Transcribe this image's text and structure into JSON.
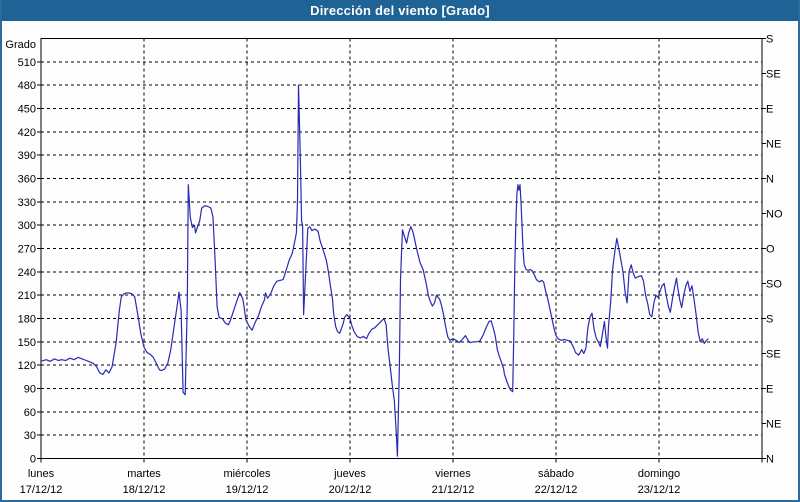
{
  "window": {
    "title": "Dirección del viento [Grado]"
  },
  "colors": {
    "titlebar_bg": "#1e6296",
    "titlebar_text": "#ffffff",
    "window_border": "#2b6a9b",
    "plot_frame": "#000000",
    "grid": "#000000",
    "line": "#2a2ab5",
    "background": "#fdfefd"
  },
  "chart_data": {
    "type": "line",
    "title": "Dirección del viento [Grado]",
    "grid": {
      "style": "dashed",
      "horizontal_step_deg": 30,
      "vertical": "day-boundaries"
    },
    "legend": "none",
    "y_axis": {
      "title": "Grado",
      "min": 0,
      "max": 540,
      "tick_step": 30,
      "tick_labels": [
        "0",
        "30",
        "60",
        "90",
        "120",
        "150",
        "180",
        "210",
        "240",
        "270",
        "300",
        "330",
        "360",
        "390",
        "420",
        "450",
        "480",
        "510"
      ]
    },
    "y2_axis": {
      "kind": "compass",
      "tick_step_deg": 45,
      "labels_bottom_to_top": [
        "N",
        "NE",
        "E",
        "SE",
        "S",
        "SO",
        "O",
        "NO",
        "N",
        "NE",
        "E",
        "SE",
        "S"
      ]
    },
    "x_axis": {
      "unit": "days",
      "days": [
        {
          "name": "lunes",
          "date": "17/12/12"
        },
        {
          "name": "martes",
          "date": "18/12/12"
        },
        {
          "name": "miércoles",
          "date": "19/12/12"
        },
        {
          "name": "jueves",
          "date": "20/12/12"
        },
        {
          "name": "viernes",
          "date": "21/12/12"
        },
        {
          "name": "sábado",
          "date": "22/12/12"
        },
        {
          "name": "domingo",
          "date": "23/12/12"
        }
      ]
    },
    "series": [
      {
        "name": "Dirección del viento [Grado]",
        "x_unit": "day_fraction_from_monday_start",
        "y_unit": "degrees",
        "points": [
          [
            0.0,
            125
          ],
          [
            0.05,
            127
          ],
          [
            0.09,
            125
          ],
          [
            0.13,
            128
          ],
          [
            0.17,
            126
          ],
          [
            0.2,
            127
          ],
          [
            0.24,
            126
          ],
          [
            0.28,
            129
          ],
          [
            0.32,
            127
          ],
          [
            0.36,
            130
          ],
          [
            0.4,
            128
          ],
          [
            0.44,
            126
          ],
          [
            0.48,
            124
          ],
          [
            0.51,
            122
          ],
          [
            0.54,
            118
          ],
          [
            0.57,
            110
          ],
          [
            0.6,
            108
          ],
          [
            0.63,
            114
          ],
          [
            0.66,
            110
          ],
          [
            0.69,
            118
          ],
          [
            0.73,
            150
          ],
          [
            0.76,
            190
          ],
          [
            0.78,
            208
          ],
          [
            0.81,
            212
          ],
          [
            0.84,
            213
          ],
          [
            0.88,
            212
          ],
          [
            0.91,
            208
          ],
          [
            0.94,
            185
          ],
          [
            0.97,
            160
          ],
          [
            1.0,
            143
          ],
          [
            1.03,
            136
          ],
          [
            1.06,
            134
          ],
          [
            1.09,
            130
          ],
          [
            1.12,
            122
          ],
          [
            1.15,
            114
          ],
          [
            1.17,
            113
          ],
          [
            1.2,
            115
          ],
          [
            1.23,
            122
          ],
          [
            1.26,
            140
          ],
          [
            1.29,
            168
          ],
          [
            1.32,
            195
          ],
          [
            1.34,
            214
          ],
          [
            1.36,
            190
          ],
          [
            1.38,
            85
          ],
          [
            1.4,
            82
          ],
          [
            1.42,
            200
          ],
          [
            1.43,
            352
          ],
          [
            1.45,
            310
          ],
          [
            1.47,
            297
          ],
          [
            1.49,
            300
          ],
          [
            1.5,
            290
          ],
          [
            1.52,
            298
          ],
          [
            1.54,
            305
          ],
          [
            1.56,
            322
          ],
          [
            1.59,
            325
          ],
          [
            1.62,
            324
          ],
          [
            1.65,
            322
          ],
          [
            1.67,
            310
          ],
          [
            1.69,
            255
          ],
          [
            1.71,
            195
          ],
          [
            1.73,
            181
          ],
          [
            1.76,
            180
          ],
          [
            1.79,
            174
          ],
          [
            1.82,
            172
          ],
          [
            1.84,
            178
          ],
          [
            1.87,
            190
          ],
          [
            1.9,
            202
          ],
          [
            1.93,
            213
          ],
          [
            1.96,
            205
          ],
          [
            1.99,
            178
          ],
          [
            2.02,
            170
          ],
          [
            2.05,
            165
          ],
          [
            2.08,
            175
          ],
          [
            2.11,
            183
          ],
          [
            2.14,
            195
          ],
          [
            2.17,
            204
          ],
          [
            2.18,
            213
          ],
          [
            2.2,
            206
          ],
          [
            2.23,
            212
          ],
          [
            2.26,
            222
          ],
          [
            2.29,
            228
          ],
          [
            2.32,
            229
          ],
          [
            2.35,
            230
          ],
          [
            2.38,
            242
          ],
          [
            2.41,
            255
          ],
          [
            2.44,
            264
          ],
          [
            2.46,
            277
          ],
          [
            2.48,
            290
          ],
          [
            2.49,
            330
          ],
          [
            2.5,
            480
          ],
          [
            2.51,
            430
          ],
          [
            2.52,
            370
          ],
          [
            2.53,
            305
          ],
          [
            2.54,
            300
          ],
          [
            2.55,
            185
          ],
          [
            2.57,
            240
          ],
          [
            2.59,
            296
          ],
          [
            2.61,
            298
          ],
          [
            2.63,
            293
          ],
          [
            2.66,
            295
          ],
          [
            2.69,
            292
          ],
          [
            2.71,
            280
          ],
          [
            2.74,
            268
          ],
          [
            2.77,
            255
          ],
          [
            2.79,
            240
          ],
          [
            2.81,
            222
          ],
          [
            2.83,
            205
          ],
          [
            2.84,
            188
          ],
          [
            2.86,
            170
          ],
          [
            2.88,
            163
          ],
          [
            2.9,
            161
          ],
          [
            2.93,
            172
          ],
          [
            2.95,
            182
          ],
          [
            2.97,
            185
          ],
          [
            3.0,
            180
          ],
          [
            3.02,
            170
          ],
          [
            3.04,
            163
          ],
          [
            3.07,
            157
          ],
          [
            3.1,
            155
          ],
          [
            3.13,
            157
          ],
          [
            3.16,
            154
          ],
          [
            3.18,
            160
          ],
          [
            3.21,
            166
          ],
          [
            3.24,
            168
          ],
          [
            3.27,
            172
          ],
          [
            3.3,
            176
          ],
          [
            3.33,
            180
          ],
          [
            3.35,
            172
          ],
          [
            3.37,
            140
          ],
          [
            3.39,
            118
          ],
          [
            3.41,
            95
          ],
          [
            3.43,
            75
          ],
          [
            3.45,
            30
          ],
          [
            3.46,
            3
          ],
          [
            3.47,
            60
          ],
          [
            3.48,
            120
          ],
          [
            3.49,
            230
          ],
          [
            3.5,
            264
          ],
          [
            3.51,
            294
          ],
          [
            3.53,
            285
          ],
          [
            3.55,
            277
          ],
          [
            3.57,
            290
          ],
          [
            3.59,
            298
          ],
          [
            3.61,
            292
          ],
          [
            3.63,
            280
          ],
          [
            3.65,
            268
          ],
          [
            3.68,
            252
          ],
          [
            3.71,
            243
          ],
          [
            3.74,
            225
          ],
          [
            3.76,
            210
          ],
          [
            3.78,
            202
          ],
          [
            3.8,
            196
          ],
          [
            3.82,
            200
          ],
          [
            3.84,
            210
          ],
          [
            3.85,
            208
          ],
          [
            3.87,
            205
          ],
          [
            3.89,
            196
          ],
          [
            3.91,
            184
          ],
          [
            3.93,
            168
          ],
          [
            3.95,
            156
          ],
          [
            3.97,
            152
          ],
          [
            4.0,
            154
          ],
          [
            4.03,
            152
          ],
          [
            4.06,
            149
          ],
          [
            4.09,
            153
          ],
          [
            4.12,
            158
          ],
          [
            4.15,
            151
          ],
          [
            4.17,
            149
          ],
          [
            4.2,
            150
          ],
          [
            4.23,
            150
          ],
          [
            4.26,
            151
          ],
          [
            4.29,
            158
          ],
          [
            4.32,
            168
          ],
          [
            4.35,
            176
          ],
          [
            4.37,
            177
          ],
          [
            4.39,
            168
          ],
          [
            4.41,
            158
          ],
          [
            4.43,
            140
          ],
          [
            4.45,
            131
          ],
          [
            4.47,
            124
          ],
          [
            4.49,
            116
          ],
          [
            4.5,
            108
          ],
          [
            4.52,
            100
          ],
          [
            4.54,
            93
          ],
          [
            4.56,
            88
          ],
          [
            4.58,
            86
          ],
          [
            4.59,
            160
          ],
          [
            4.6,
            247
          ],
          [
            4.61,
            300
          ],
          [
            4.62,
            340
          ],
          [
            4.63,
            352
          ],
          [
            4.64,
            345
          ],
          [
            4.65,
            352
          ],
          [
            4.66,
            330
          ],
          [
            4.67,
            300
          ],
          [
            4.68,
            270
          ],
          [
            4.69,
            250
          ],
          [
            4.71,
            243
          ],
          [
            4.73,
            242
          ],
          [
            4.75,
            243
          ],
          [
            4.77,
            241
          ],
          [
            4.79,
            236
          ],
          [
            4.81,
            230
          ],
          [
            4.83,
            228
          ],
          [
            4.84,
            227
          ],
          [
            4.86,
            229
          ],
          [
            4.88,
            227
          ],
          [
            4.9,
            215
          ],
          [
            4.92,
            205
          ],
          [
            4.94,
            193
          ],
          [
            4.96,
            180
          ],
          [
            4.98,
            168
          ],
          [
            5.0,
            158
          ],
          [
            5.02,
            154
          ],
          [
            5.05,
            152
          ],
          [
            5.08,
            153
          ],
          [
            5.11,
            152
          ],
          [
            5.14,
            151
          ],
          [
            5.17,
            143
          ],
          [
            5.19,
            136
          ],
          [
            5.22,
            133
          ],
          [
            5.25,
            140
          ],
          [
            5.27,
            135
          ],
          [
            5.29,
            142
          ],
          [
            5.31,
            168
          ],
          [
            5.33,
            182
          ],
          [
            5.35,
            187
          ],
          [
            5.37,
            166
          ],
          [
            5.39,
            155
          ],
          [
            5.41,
            150
          ],
          [
            5.43,
            144
          ],
          [
            5.45,
            160
          ],
          [
            5.47,
            176
          ],
          [
            5.49,
            150
          ],
          [
            5.5,
            142
          ],
          [
            5.51,
            170
          ],
          [
            5.53,
            200
          ],
          [
            5.55,
            243
          ],
          [
            5.57,
            265
          ],
          [
            5.59,
            283
          ],
          [
            5.61,
            270
          ],
          [
            5.63,
            255
          ],
          [
            5.65,
            240
          ],
          [
            5.67,
            215
          ],
          [
            5.69,
            200
          ],
          [
            5.71,
            240
          ],
          [
            5.73,
            249
          ],
          [
            5.75,
            238
          ],
          [
            5.77,
            232
          ],
          [
            5.8,
            234
          ],
          [
            5.83,
            235
          ],
          [
            5.85,
            228
          ],
          [
            5.87,
            210
          ],
          [
            5.89,
            199
          ],
          [
            5.91,
            185
          ],
          [
            5.93,
            182
          ],
          [
            5.95,
            200
          ],
          [
            5.97,
            210
          ],
          [
            5.99,
            207
          ],
          [
            6.01,
            215
          ],
          [
            6.03,
            222
          ],
          [
            6.05,
            225
          ],
          [
            6.07,
            210
          ],
          [
            6.09,
            196
          ],
          [
            6.11,
            188
          ],
          [
            6.13,
            205
          ],
          [
            6.15,
            220
          ],
          [
            6.17,
            232
          ],
          [
            6.18,
            222
          ],
          [
            6.2,
            205
          ],
          [
            6.22,
            194
          ],
          [
            6.24,
            210
          ],
          [
            6.26,
            222
          ],
          [
            6.28,
            228
          ],
          [
            6.3,
            215
          ],
          [
            6.32,
            222
          ],
          [
            6.34,
            205
          ],
          [
            6.36,
            185
          ],
          [
            6.38,
            163
          ],
          [
            6.4,
            150
          ],
          [
            6.42,
            154
          ],
          [
            6.44,
            148
          ],
          [
            6.46,
            152
          ],
          [
            6.48,
            154
          ]
        ]
      }
    ]
  }
}
